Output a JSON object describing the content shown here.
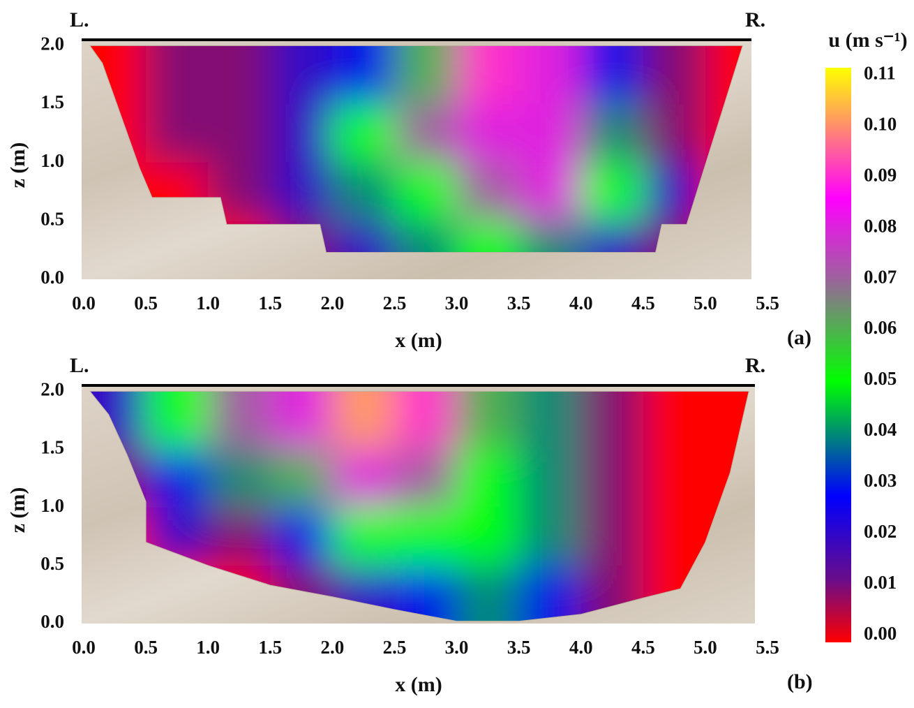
{
  "chart_data": [
    {
      "type": "contour",
      "panel_label": "(a)",
      "left_label": "L.",
      "right_label": "R.",
      "xlabel": "x (m)",
      "ylabel": "z (m)",
      "xlim": [
        0,
        5.5
      ],
      "ylim": [
        0,
        2.05
      ],
      "xticks": [
        {
          "value": 0,
          "label": "0.0"
        },
        0.5,
        {
          "value": 1,
          "label": "1.0"
        },
        1.5,
        {
          "value": 2,
          "label": "2.0"
        },
        2.5,
        {
          "value": 3,
          "label": "3.0"
        },
        3.5,
        {
          "value": 4,
          "label": "4.0"
        },
        4.5,
        {
          "value": 5,
          "label": "5.0"
        },
        5.5
      ],
      "yticks": [
        {
          "value": 0,
          "label": "0.0"
        },
        0.5,
        {
          "value": 1,
          "label": "1.0"
        },
        1.5,
        {
          "value": 2,
          "label": "2.0"
        }
      ],
      "x": [
        0.25,
        0.75,
        1.25,
        1.75,
        2.25,
        2.75,
        3.25,
        3.75,
        4.25,
        4.75,
        5.25
      ],
      "y": [
        1.75,
        1.25,
        0.75,
        0.25
      ],
      "values": [
        [
          0.0,
          0.01,
          0.01,
          0.02,
          0.03,
          0.06,
          0.09,
          0.08,
          0.03,
          0.01,
          0.0
        ],
        [
          0.0,
          0.01,
          0.01,
          0.02,
          0.05,
          0.07,
          0.08,
          0.08,
          0.04,
          0.01,
          0.0
        ],
        [
          0.0,
          0.0,
          0.01,
          0.02,
          0.04,
          0.05,
          0.07,
          0.08,
          0.05,
          0.02,
          0.0
        ],
        [
          0.0,
          0.0,
          0.0,
          0.01,
          0.02,
          0.04,
          0.05,
          0.04,
          0.02,
          0.01,
          0.0
        ]
      ],
      "bed": {
        "x": [
          0.05,
          0.15,
          0.3,
          0.45,
          0.55,
          1.1,
          1.15,
          1.9,
          1.95,
          4.6,
          4.65,
          4.85,
          5.3
        ],
        "z": [
          2.0,
          1.85,
          1.4,
          0.95,
          0.7,
          0.7,
          0.47,
          0.47,
          0.23,
          0.23,
          0.47,
          0.47,
          2.0
        ]
      }
    },
    {
      "type": "contour",
      "panel_label": "(b)",
      "left_label": "L.",
      "right_label": "R.",
      "xlabel": "x (m)",
      "ylabel": "z (m)",
      "xlim": [
        0,
        5.5
      ],
      "ylim": [
        0,
        2.05
      ],
      "xticks": [
        {
          "value": 0,
          "label": "0.0"
        },
        0.5,
        {
          "value": 1,
          "label": "1.0"
        },
        1.5,
        {
          "value": 2,
          "label": "2.0"
        },
        2.5,
        {
          "value": 3,
          "label": "3.0"
        },
        3.5,
        {
          "value": 4,
          "label": "4.0"
        },
        4.5,
        {
          "value": 5,
          "label": "5.0"
        },
        5.5
      ],
      "yticks": [
        {
          "value": 0,
          "label": "0.0"
        },
        0.5,
        {
          "value": 1,
          "label": "1.0"
        },
        1.5,
        {
          "value": 2,
          "label": "2.0"
        }
      ],
      "x": [
        0.25,
        0.75,
        1.25,
        1.75,
        2.25,
        2.75,
        3.25,
        3.75,
        4.25,
        4.75,
        5.25
      ],
      "y": [
        1.75,
        1.25,
        0.75,
        0.25
      ],
      "values": [
        [
          0.02,
          0.05,
          0.07,
          0.08,
          0.1,
          0.09,
          0.06,
          0.04,
          0.01,
          0.0,
          0.0
        ],
        [
          0.01,
          0.03,
          0.04,
          0.06,
          0.08,
          0.07,
          0.05,
          0.04,
          0.01,
          0.0,
          0.0
        ],
        [
          0.0,
          0.02,
          0.01,
          0.03,
          0.05,
          0.05,
          0.05,
          0.04,
          0.01,
          0.0,
          0.0
        ],
        [
          0.0,
          0.0,
          0.0,
          0.01,
          0.02,
          0.03,
          0.04,
          0.03,
          0.01,
          0.0,
          0.0
        ]
      ],
      "bed": {
        "x": [
          0.05,
          0.2,
          0.35,
          0.5,
          0.5,
          1.0,
          1.5,
          2.0,
          2.5,
          3.0,
          3.5,
          4.0,
          4.5,
          4.8,
          5.0,
          5.2,
          5.35
        ],
        "z": [
          2.0,
          1.8,
          1.45,
          1.05,
          0.7,
          0.5,
          0.33,
          0.23,
          0.12,
          0.02,
          0.02,
          0.08,
          0.22,
          0.3,
          0.7,
          1.3,
          2.0
        ]
      }
    },
    {
      "type": "colorbar",
      "title": "u (m s⁻¹)",
      "clim": [
        0,
        0.11
      ],
      "ticks": [
        {
          "value": 0,
          "label": "0.00"
        },
        0.01,
        0.02,
        0.03,
        0.04,
        0.05,
        0.06,
        0.07,
        0.08,
        0.09,
        {
          "value": 0.1,
          "label": "0.10"
        },
        0.11
      ],
      "colormap": [
        {
          "value": 0,
          "color": "#ff0000"
        },
        {
          "value": 0.012,
          "color": "#6a0d8a"
        },
        {
          "value": 0.028,
          "color": "#0000ff"
        },
        {
          "value": 0.05,
          "color": "#00ff00"
        },
        {
          "value": 0.07,
          "color": "#a060a0"
        },
        {
          "value": 0.085,
          "color": "#ff00ff"
        },
        {
          "value": 0.1,
          "color": "#ff9a60"
        },
        {
          "value": 0.11,
          "color": "#ffff00"
        }
      ]
    }
  ]
}
